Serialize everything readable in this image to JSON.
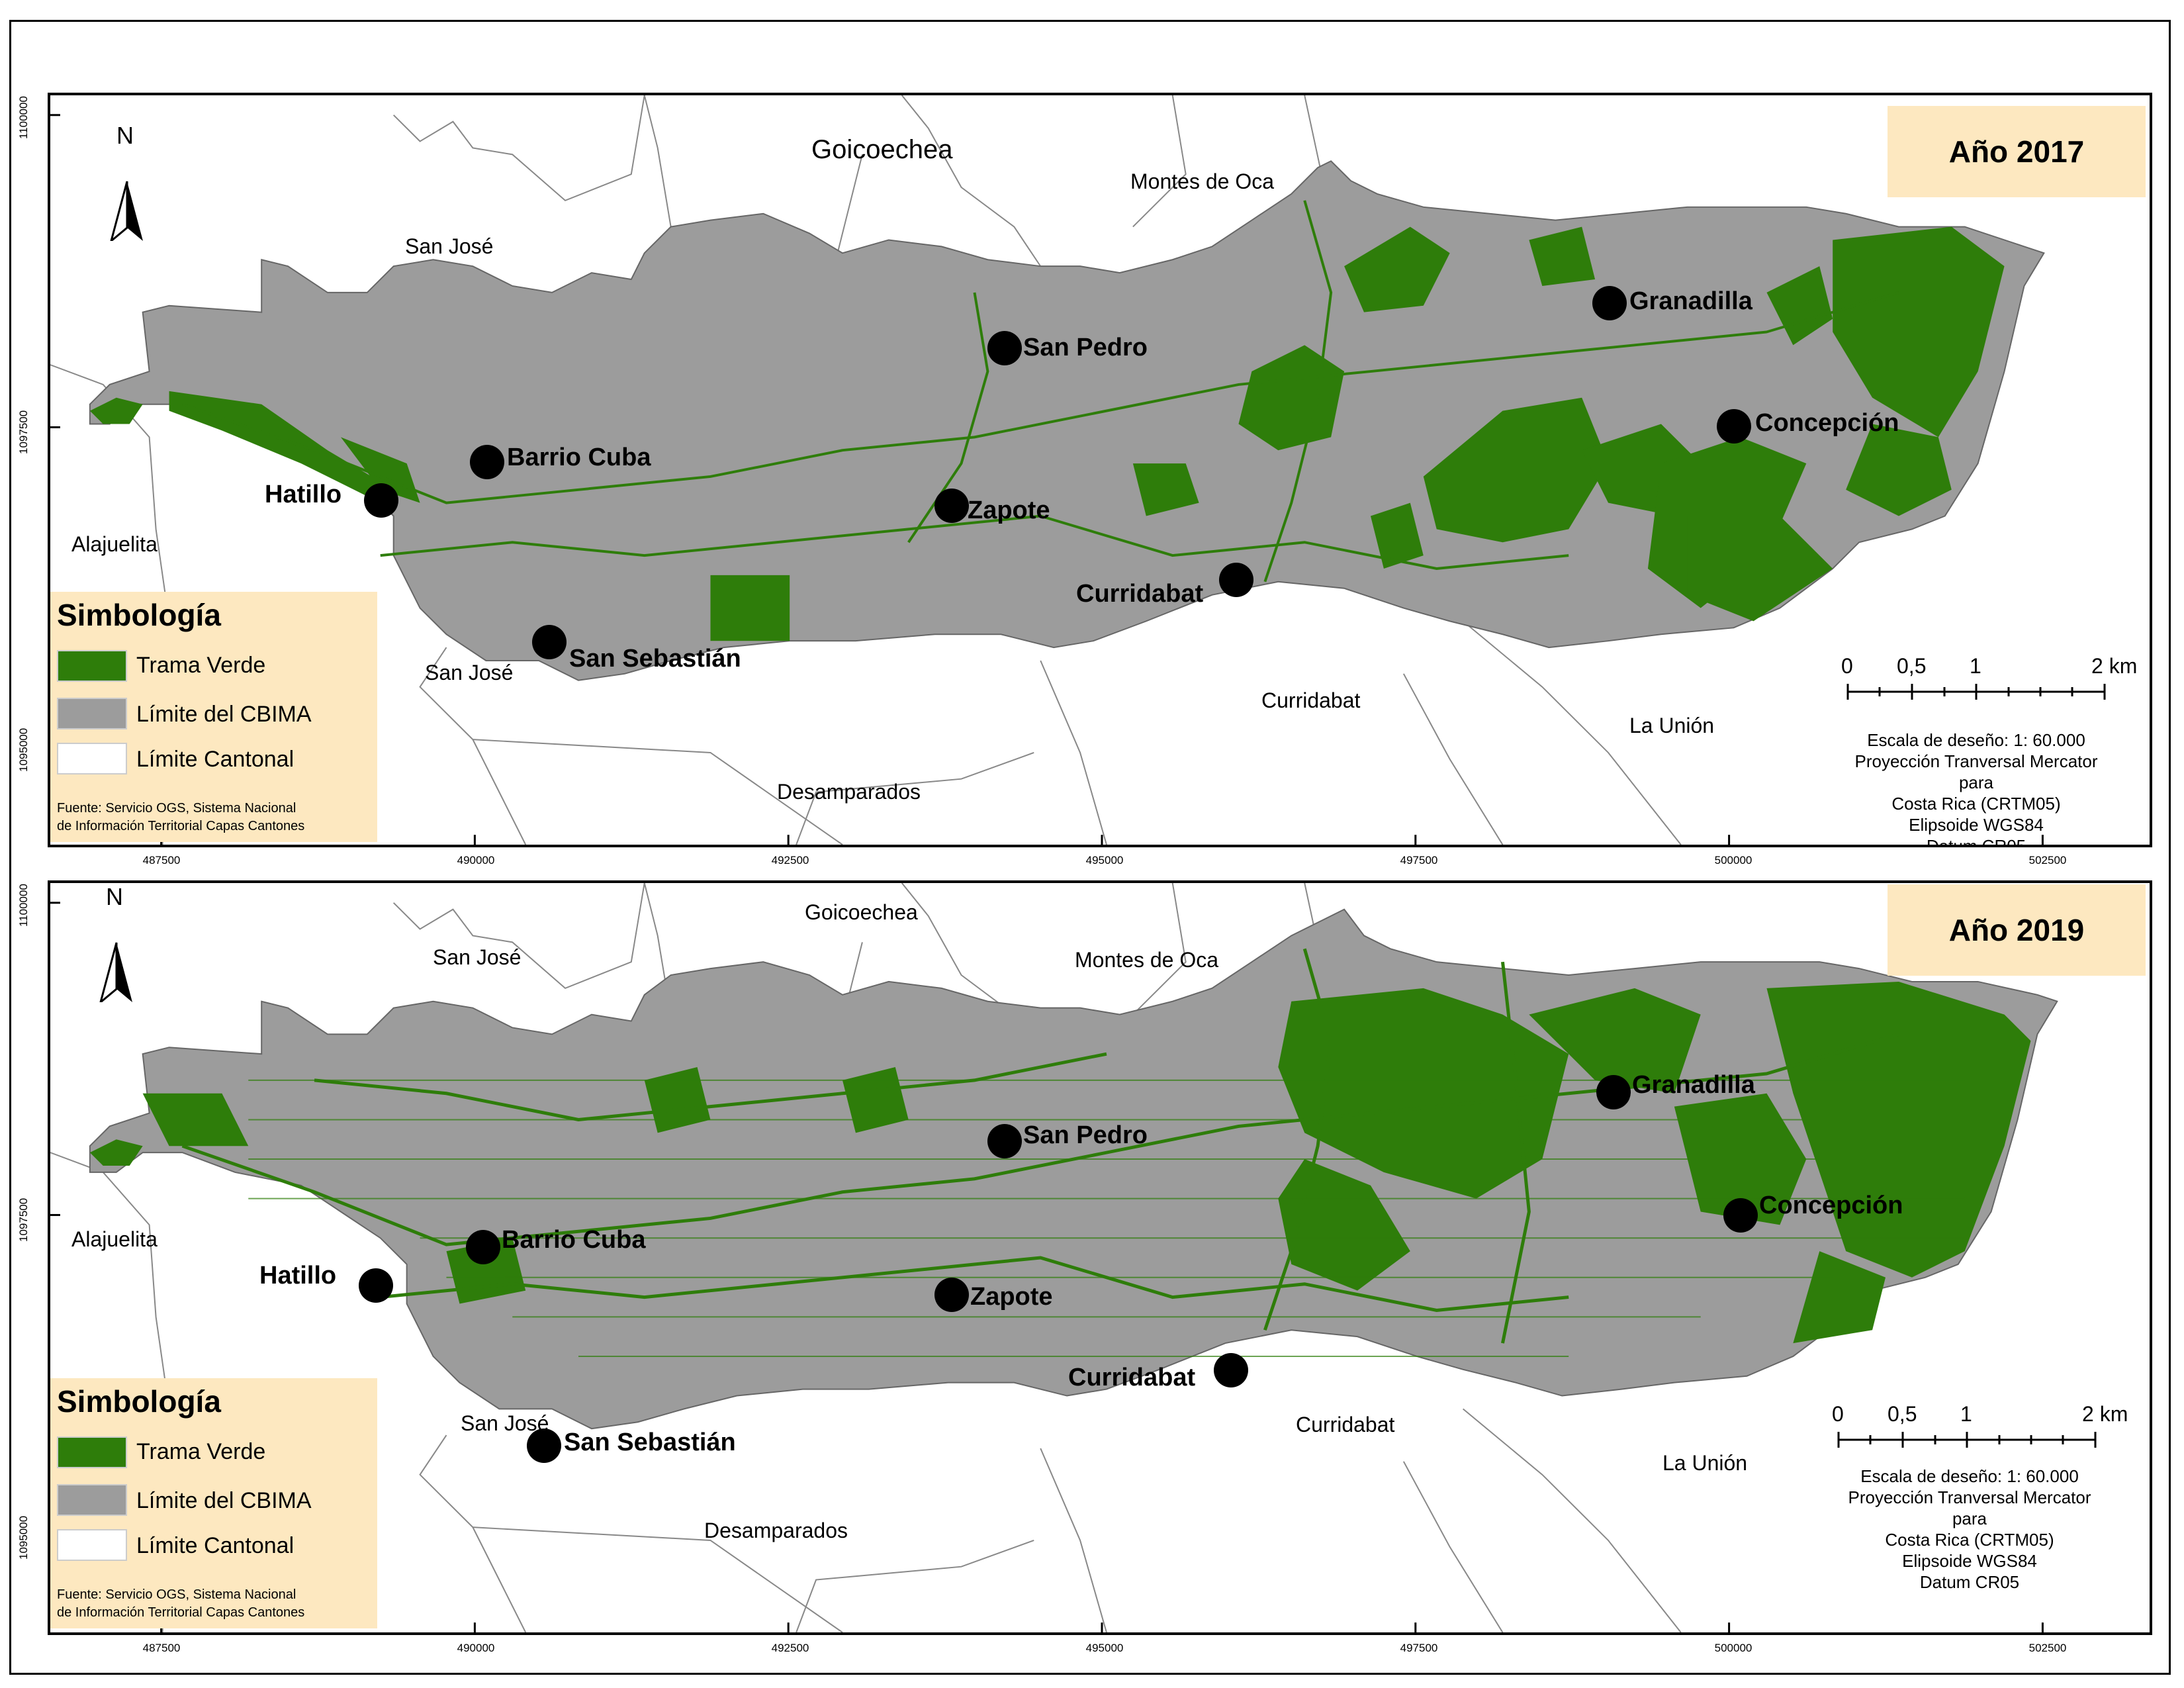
{
  "x_ticks": [
    "487500",
    "490000",
    "492500",
    "495000",
    "497500",
    "500000",
    "502500"
  ],
  "y_ticks": [
    "1100000",
    "1097500",
    "1095000"
  ],
  "north_label": "N",
  "colors": {
    "green": "#2e7d0a",
    "gray": "#9c9c9c",
    "legend_bg": "#fde8c0"
  },
  "panels": [
    {
      "year": "Año 2017"
    },
    {
      "year": "Año 2019"
    }
  ],
  "legend": {
    "title": "Simbología",
    "items": [
      "Trama Verde",
      "Límite del CBIMA",
      "Límite Cantonal"
    ],
    "source_line1": "Fuente: Servicio OGS, Sistema Nacional",
    "source_line2": "de Información Territorial Capas Cantones"
  },
  "cantons": {
    "goicoechea": "Goicoechea",
    "montes_de_oca": "Montes de Oca",
    "san_jose": "San José",
    "alajuelita": "Alajuelita",
    "desamparados": "Desamparados",
    "curridabat": "Curridabat",
    "la_union": "La Unión"
  },
  "cities": {
    "granadilla": "Granadilla",
    "san_pedro": "San Pedro",
    "concepcion": "Concepción",
    "barrio_cuba": "Barrio Cuba",
    "hatillo": "Hatillo",
    "zapote": "Zapote",
    "curridabat": "Curridabat",
    "san_sebastian": "San Sebastián"
  },
  "scale": {
    "labels": [
      "0",
      "0,5",
      "1",
      "2 km"
    ],
    "line1": "Escala de deseño: 1: 60.000",
    "line2": "Proyección Tranversal Mercator para",
    "line3": "Costa Rica (CRTM05)",
    "line4": "Elipsoide WGS84",
    "line5": "Datum CR05"
  }
}
